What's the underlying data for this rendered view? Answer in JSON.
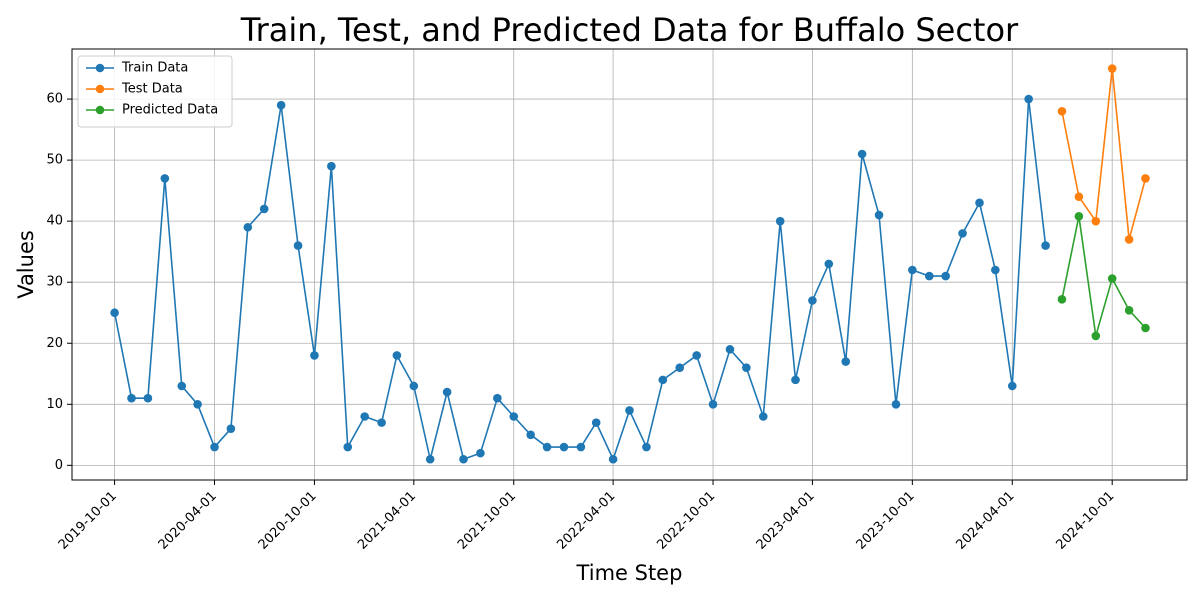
{
  "chart_data": {
    "type": "line",
    "title": "Train, Test, and Predicted Data for Buffalo Sector",
    "xlabel": "Time Step",
    "ylabel": "Values",
    "x_ticks": [
      "2019-10-01",
      "2020-04-01",
      "2020-10-01",
      "2021-04-01",
      "2021-10-01",
      "2022-04-01",
      "2022-10-01",
      "2023-04-01",
      "2023-10-01",
      "2024-04-01",
      "2024-10-01"
    ],
    "y_ticks": [
      0,
      10,
      20,
      30,
      40,
      50,
      60
    ],
    "ylim": [
      -2.4,
      68.2
    ],
    "xlim": [
      "2019-07-15",
      "2025-02-15"
    ],
    "grid": true,
    "legend_position": "top-left",
    "series": [
      {
        "name": "Train Data",
        "color": "#1f77b4",
        "x": [
          "2019-10-01",
          "2019-11-01",
          "2019-12-01",
          "2020-01-01",
          "2020-02-01",
          "2020-03-01",
          "2020-04-01",
          "2020-05-01",
          "2020-06-01",
          "2020-07-01",
          "2020-08-01",
          "2020-09-01",
          "2020-10-01",
          "2020-11-01",
          "2020-12-01",
          "2021-01-01",
          "2021-02-01",
          "2021-03-01",
          "2021-04-01",
          "2021-05-01",
          "2021-06-01",
          "2021-07-01",
          "2021-08-01",
          "2021-09-01",
          "2021-10-01",
          "2021-11-01",
          "2021-12-01",
          "2022-01-01",
          "2022-02-01",
          "2022-03-01",
          "2022-04-01",
          "2022-05-01",
          "2022-06-01",
          "2022-07-01",
          "2022-08-01",
          "2022-09-01",
          "2022-10-01",
          "2022-11-01",
          "2022-12-01",
          "2023-01-01",
          "2023-02-01",
          "2023-03-01",
          "2023-04-01",
          "2023-05-01",
          "2023-06-01",
          "2023-07-01",
          "2023-08-01",
          "2023-09-01",
          "2023-10-01",
          "2023-11-01",
          "2023-12-01",
          "2024-01-01",
          "2024-02-01",
          "2024-03-01",
          "2024-04-01",
          "2024-05-01",
          "2024-06-01"
        ],
        "values": [
          25,
          11,
          11,
          47,
          13,
          10,
          3,
          6,
          39,
          42,
          59,
          36,
          18,
          49,
          3,
          8,
          7,
          18,
          13,
          1,
          12,
          1,
          2,
          11,
          8,
          5,
          3,
          3,
          3,
          7,
          1,
          9,
          3,
          14,
          16,
          18,
          10,
          19,
          16,
          8,
          40,
          14,
          27,
          33,
          17,
          51,
          41,
          10,
          32,
          31,
          31,
          38,
          43,
          32,
          13,
          60,
          36
        ]
      },
      {
        "name": "Test Data",
        "color": "#ff7f0e",
        "x": [
          "2024-07-01",
          "2024-08-01",
          "2024-09-01",
          "2024-10-01",
          "2024-11-01",
          "2024-12-01"
        ],
        "values": [
          58,
          44,
          40,
          65,
          37,
          47
        ]
      },
      {
        "name": "Predicted Data",
        "color": "#2ca02c",
        "x": [
          "2024-07-01",
          "2024-08-01",
          "2024-09-01",
          "2024-10-01",
          "2024-11-01",
          "2024-12-01"
        ],
        "values": [
          27.2,
          40.8,
          21.2,
          30.6,
          25.4,
          22.5
        ]
      }
    ]
  }
}
